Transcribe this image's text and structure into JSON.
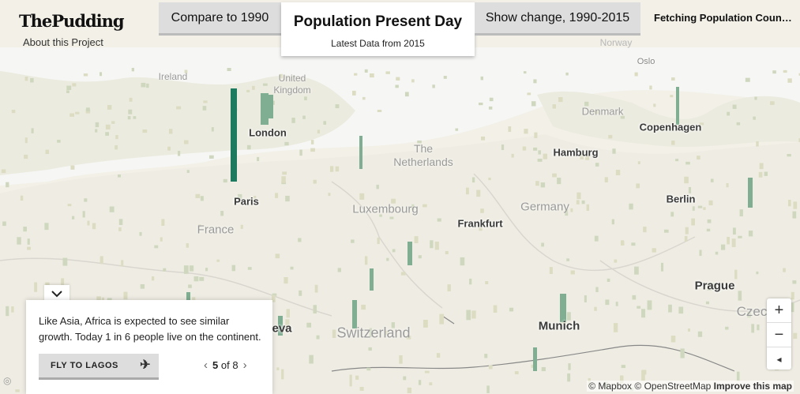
{
  "header": {
    "logo": "ThePudding",
    "about_link": "About this Project",
    "status": "Fetching Population Count..."
  },
  "tabs": [
    {
      "label": "Compare to 1990"
    },
    {
      "label": "Population Present Day",
      "sublabel": "Latest Data from 2015",
      "active": true
    },
    {
      "label": "Show change, 1990-2015"
    }
  ],
  "map": {
    "cities": [
      "London",
      "Paris",
      "Hamburg",
      "Copenhagen",
      "Berlin",
      "Frankfurt",
      "Prague",
      "Munich",
      "Oslo",
      "eva"
    ],
    "countries": [
      "France",
      "Luxembourg",
      "Germany",
      "The Netherlands",
      "Switzerland",
      "Czec",
      "Denmark",
      "United Kingdom",
      "Ireland",
      "Norway"
    ],
    "accent": "#1e7a5e"
  },
  "story_card": {
    "text": "Like Asia, Africa is expected to see similar growth. Today 1 in 6 people live on the continent.",
    "action_label": "FLY TO LAGOS",
    "current": "5",
    "of_label": "of",
    "total": "8"
  },
  "controls": {
    "zoom_in": "+",
    "zoom_out": "−",
    "compass": "◂"
  },
  "attribution": {
    "mapbox": "© Mapbox",
    "osm": "© OpenStreetMap",
    "improve": "Improve this map"
  }
}
